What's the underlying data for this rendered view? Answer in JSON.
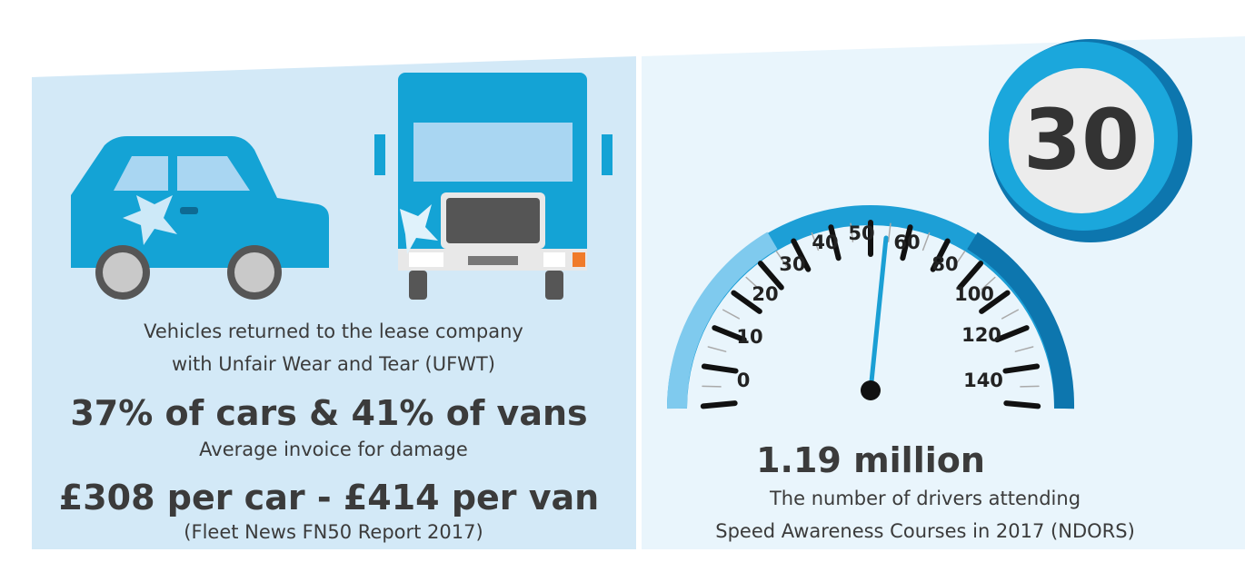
{
  "left_panel": {
    "caption": [
      "Vehicles returned to the lease company",
      "with Unfair Wear and Tear (UFWT)"
    ],
    "headline": "37% of cars & 41% of vans",
    "subcaption": "Average invoice for damage",
    "cost": "£308 per car - £414 per van",
    "source": "(Fleet News FN50 Report 2017)"
  },
  "right_panel": {
    "speed_sign": "30",
    "gauge_labels": [
      "0",
      "10",
      "20",
      "30",
      "40",
      "50",
      "60",
      "80",
      "100",
      "120",
      "140"
    ],
    "headline": "1.19 million",
    "caption": [
      "The number of drivers attending",
      "Speed Awareness Courses in 2017 (NDORS)"
    ]
  }
}
